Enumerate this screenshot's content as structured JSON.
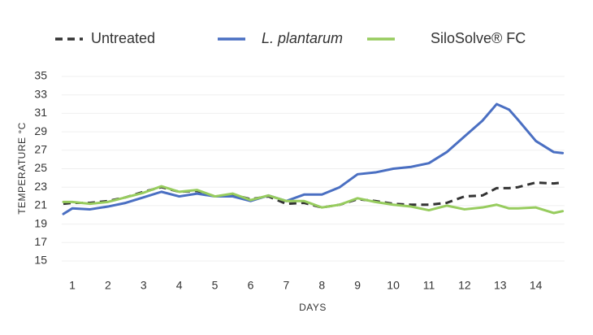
{
  "chart_data": {
    "type": "line",
    "xlabel": "DAYS",
    "ylabel": "TEMPERATURE °C",
    "x": [
      0.75,
      1,
      1.5,
      2,
      2.5,
      3,
      3.5,
      4,
      4.5,
      5,
      5.5,
      6,
      6.5,
      7,
      7.5,
      8,
      8.5,
      9,
      9.5,
      10,
      10.5,
      11,
      11.5,
      12,
      12.5,
      12.9,
      13.25,
      13.5,
      14,
      14.5,
      14.75
    ],
    "series": [
      {
        "name": "Untreated",
        "color": "#333333",
        "dashed": true,
        "values": [
          21.2,
          21.3,
          21.3,
          21.5,
          21.9,
          22.5,
          23.0,
          22.5,
          22.6,
          22.0,
          22.2,
          21.7,
          22.0,
          21.2,
          21.3,
          20.8,
          21.1,
          21.7,
          21.5,
          21.2,
          21.1,
          21.1,
          21.3,
          22.0,
          22.1,
          22.9,
          22.9,
          23.0,
          23.5,
          23.4,
          23.5
        ]
      },
      {
        "name": "L. plantarum",
        "color": "#4a6fc2",
        "italic": true,
        "values": [
          20.1,
          20.7,
          20.6,
          20.9,
          21.3,
          21.9,
          22.5,
          22.0,
          22.3,
          22.0,
          22.0,
          21.5,
          22.1,
          21.5,
          22.2,
          22.2,
          23.0,
          24.4,
          24.6,
          25.0,
          25.2,
          25.6,
          26.8,
          28.5,
          30.2,
          32.0,
          31.4,
          30.3,
          28.0,
          26.8,
          26.7
        ]
      },
      {
        "name": "SiloSolve® FC",
        "color": "#97cc5e",
        "values": [
          21.4,
          21.4,
          21.2,
          21.4,
          21.9,
          22.4,
          23.1,
          22.5,
          22.7,
          22.0,
          22.3,
          21.6,
          22.1,
          21.5,
          21.5,
          20.8,
          21.1,
          21.8,
          21.4,
          21.1,
          20.9,
          20.5,
          21.0,
          20.6,
          20.8,
          21.1,
          20.7,
          20.7,
          20.8,
          20.2,
          20.4
        ]
      }
    ],
    "xlim": [
      0.7,
      14.8
    ],
    "xticks": [
      1,
      2,
      3,
      4,
      5,
      6,
      7,
      8,
      9,
      10,
      11,
      12,
      13,
      14
    ],
    "ylim": [
      15,
      35
    ],
    "yticks": [
      15,
      17,
      19,
      21,
      23,
      25,
      27,
      29,
      31,
      33,
      35
    ],
    "grid": true
  }
}
